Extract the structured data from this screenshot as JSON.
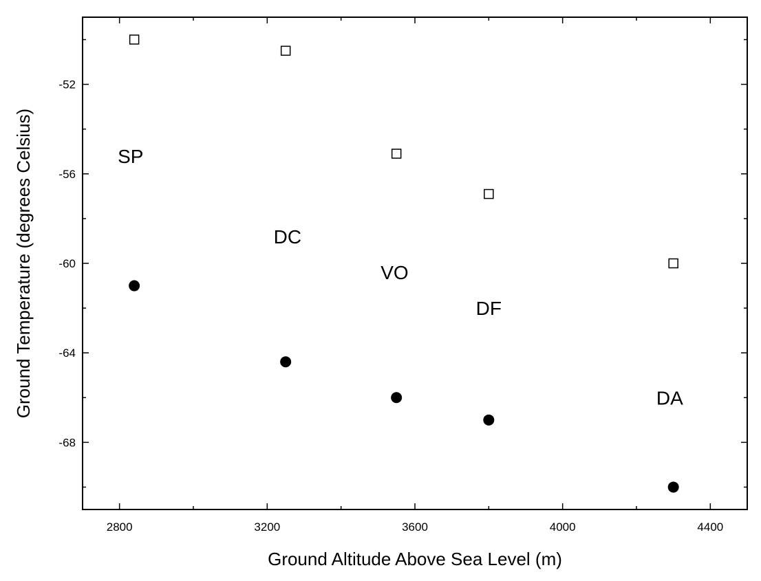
{
  "chart_data": {
    "type": "scatter",
    "title": "",
    "xlabel": "Ground Altitude Above Sea Level (m)",
    "ylabel": "Ground Temperature (degrees Celsius)",
    "xlim": [
      2700,
      4500
    ],
    "ylim": [
      -71,
      -49
    ],
    "x_major_ticks": [
      2800,
      3200,
      3600,
      4000,
      4400
    ],
    "x_minor_ticks": [
      3000,
      3400,
      3800,
      4200
    ],
    "y_major_ticks": [
      -52,
      -56,
      -60,
      -64,
      -68
    ],
    "y_minor_ticks": [
      -50,
      -54,
      -58,
      -62,
      -66,
      -70
    ],
    "grid": false,
    "series": [
      {
        "marker": "open-square",
        "points": [
          {
            "x": 2840,
            "y": -50.0
          },
          {
            "x": 3250,
            "y": -50.5
          },
          {
            "x": 3550,
            "y": -55.1
          },
          {
            "x": 3800,
            "y": -56.9
          },
          {
            "x": 4300,
            "y": -60.0
          }
        ]
      },
      {
        "marker": "filled-circle",
        "points": [
          {
            "x": 2840,
            "y": -61.0
          },
          {
            "x": 3250,
            "y": -64.4
          },
          {
            "x": 3550,
            "y": -66.0
          },
          {
            "x": 3800,
            "y": -67.0
          },
          {
            "x": 4300,
            "y": -70.0
          }
        ]
      }
    ],
    "annotations": [
      {
        "text": "SP",
        "x": 2830,
        "y": -55.2
      },
      {
        "text": "DC",
        "x": 3255,
        "y": -58.8
      },
      {
        "text": "VO",
        "x": 3545,
        "y": -60.4
      },
      {
        "text": "DF",
        "x": 3800,
        "y": -62.0
      },
      {
        "text": "DA",
        "x": 4290,
        "y": -66.0
      }
    ]
  }
}
